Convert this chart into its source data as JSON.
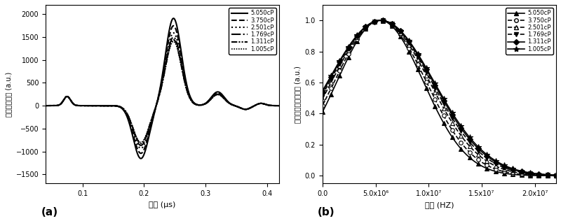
{
  "fig_width": 8.0,
  "fig_height": 3.16,
  "dpi": 100,
  "background_color": "#ffffff",
  "viscosities": [
    5.05,
    3.75,
    2.501,
    1.769,
    1.311,
    1.005
  ],
  "panel_a": {
    "xlabel": "时间 (μs)",
    "ylabel": "光声信号幅度 (a.u.)",
    "label_a": "(a)",
    "xlim": [
      0.04,
      0.42
    ],
    "ylim": [
      -1700,
      2200
    ],
    "xticks": [
      0.1,
      0.2,
      0.3,
      0.4
    ],
    "yticks": [
      -1500,
      -1000,
      -500,
      0,
      500,
      1000,
      1500,
      2000
    ],
    "series_labels": [
      "5.050cP",
      "3.750cP",
      "2.501cP",
      "1.769cP",
      "1.311cP",
      "1.005cP"
    ],
    "linewidths": [
      1.5,
      1.5,
      1.5,
      1.5,
      1.5,
      1.2
    ]
  },
  "panel_b": {
    "xlabel": "频率 (HZ)",
    "ylabel": "归一化光声信号频谱 (a.u.)",
    "label_b": "(b)",
    "xlim": [
      0,
      22000000
    ],
    "ylim": [
      -0.05,
      1.1
    ],
    "xticks": [
      0,
      5000000,
      10000000,
      15000000,
      20000000
    ],
    "xticklabels": [
      "0.0",
      "5.0x10⁶",
      "1.0x10⁷",
      "1.5x10⁷",
      "2.0x10⁷"
    ],
    "yticks": [
      0.0,
      0.2,
      0.4,
      0.6,
      0.8,
      1.0
    ],
    "series_labels": [
      "5.050cP",
      "3.750cP",
      "2.501cP",
      "1.769cP",
      "1.311cP",
      "1.005cP"
    ],
    "linewidths": [
      1.2,
      1.2,
      1.2,
      1.2,
      1.2,
      1.2
    ]
  }
}
